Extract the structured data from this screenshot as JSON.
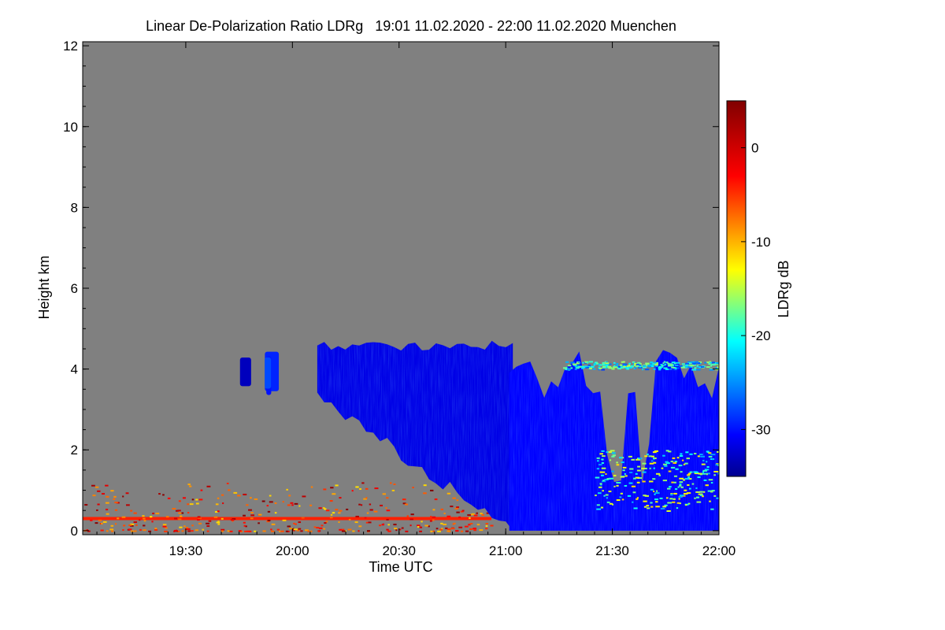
{
  "chart_data": {
    "type": "heatmap",
    "title": "Linear De-Polarization Ratio LDRg   19:01 11.02.2020 - 22:00 11.02.2020 Muenchen",
    "xlabel": "Time UTC",
    "ylabel": "Height km",
    "colorbar_label": "LDRg dB",
    "x_range_minutes": [
      1141,
      1320
    ],
    "x_ticks": [
      {
        "minute": 1170,
        "label": "19:30"
      },
      {
        "minute": 1200,
        "label": "20:00"
      },
      {
        "minute": 1230,
        "label": "20:30"
      },
      {
        "minute": 1260,
        "label": "21:00"
      },
      {
        "minute": 1290,
        "label": "21:30"
      },
      {
        "minute": 1320,
        "label": "22:00"
      }
    ],
    "ylim": [
      -0.1,
      12.1
    ],
    "y_ticks": [
      0,
      2,
      4,
      6,
      8,
      10,
      12
    ],
    "colorbar_range": [
      -35,
      5
    ],
    "colorbar_ticks": [
      0,
      -10,
      -20,
      -30
    ],
    "background_color": "#808080",
    "features": [
      {
        "name": "surface aerosol layer",
        "start_min": 1141,
        "end_min": 1256,
        "base_km": 0.0,
        "top_km": 1.2,
        "ldr_db": -2
      },
      {
        "name": "ice cloud (early patch)",
        "start_min": 1182,
        "end_min": 1196,
        "base_km": 3.2,
        "top_km": 4.5,
        "ldr_db": -30
      },
      {
        "name": "ice cloud (main, descending)",
        "start_min": 1207,
        "end_min": 1262,
        "base_km": 0.0,
        "top_km": 4.7,
        "ldr_db": -31
      },
      {
        "name": "precipitation column",
        "start_min": 1261,
        "end_min": 1320,
        "base_km": 0.0,
        "top_km": 4.5,
        "ldr_db": -30
      },
      {
        "name": "mixed-phase layer",
        "start_min": 1276,
        "end_min": 1320,
        "base_km": 4.0,
        "top_km": 4.2,
        "ldr_db": -20
      },
      {
        "name": "low mixed layer",
        "start_min": 1285,
        "end_min": 1320,
        "base_km": 0.5,
        "top_km": 2.0,
        "ldr_db": -16
      }
    ]
  }
}
